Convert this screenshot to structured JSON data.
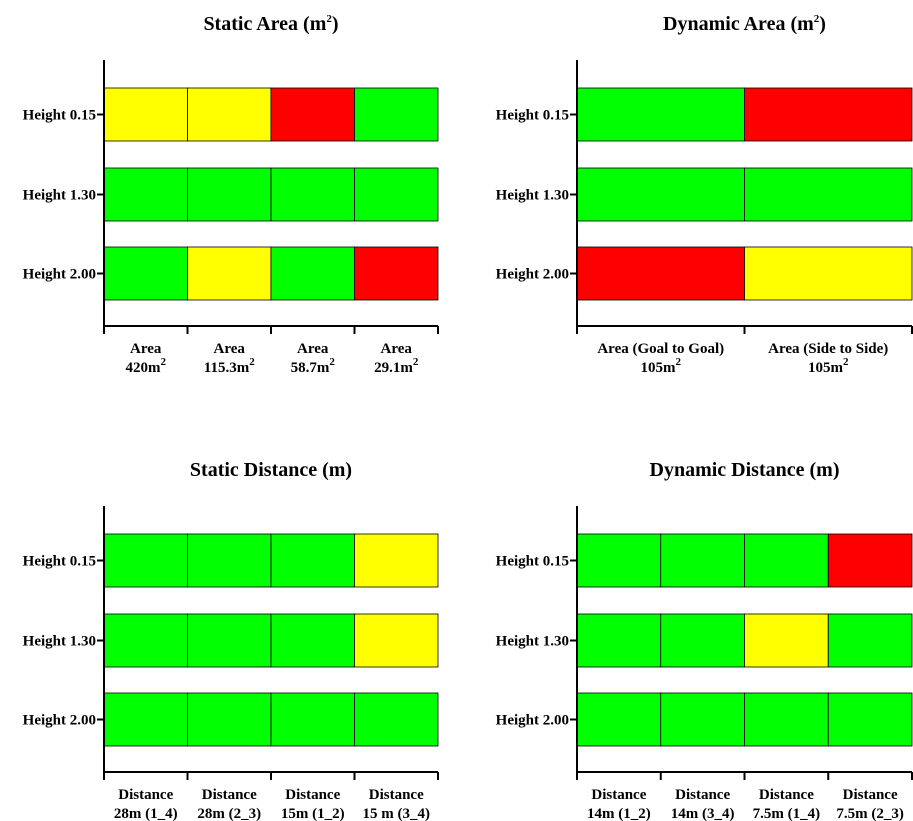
{
  "colors": {
    "green": "#00ff00",
    "yellow": "#ffff00",
    "red": "#ff0000"
  },
  "chart_data": [
    {
      "type": "heatmap",
      "title": "Static Area (m",
      "title_sup": "2",
      "title_end": ")",
      "rows": [
        "Height 0.15",
        "Height 1.30",
        "Height 2.00"
      ],
      "columns": [
        {
          "l1": "Area",
          "l2": "420m",
          "l2_sup": "2"
        },
        {
          "l1": "Area",
          "l2": "115.3m",
          "l2_sup": "2"
        },
        {
          "l1": "Area",
          "l2": "58.7m",
          "l2_sup": "2"
        },
        {
          "l1": "Area",
          "l2": "29.1m",
          "l2_sup": "2"
        }
      ],
      "cells": [
        [
          "yellow",
          "yellow",
          "red",
          "green"
        ],
        [
          "green",
          "green",
          "green",
          "green"
        ],
        [
          "green",
          "yellow",
          "green",
          "red"
        ]
      ]
    },
    {
      "type": "heatmap",
      "title": "Dynamic Area (m",
      "title_sup": "2",
      "title_end": ")",
      "rows": [
        "Height 0.15",
        "Height 1.30",
        "Height 2.00"
      ],
      "columns": [
        {
          "l1": "Area (Goal to Goal)",
          "l2": "105m",
          "l2_sup": "2"
        },
        {
          "l1": "Area (Side to Side)",
          "l2": "105m",
          "l2_sup": "2"
        }
      ],
      "cells": [
        [
          "green",
          "red"
        ],
        [
          "green",
          "green"
        ],
        [
          "red",
          "yellow"
        ]
      ]
    },
    {
      "type": "heatmap",
      "title": "Static Distance (m)",
      "title_sup": "",
      "title_end": "",
      "rows": [
        "Height 0.15",
        "Height 1.30",
        "Height 2.00"
      ],
      "columns": [
        {
          "l1": "Distance",
          "l2": "28m (1_4)",
          "l2_sup": ""
        },
        {
          "l1": "Distance",
          "l2": "28m (2_3)",
          "l2_sup": ""
        },
        {
          "l1": "Distance",
          "l2": "15m (1_2)",
          "l2_sup": ""
        },
        {
          "l1": "Distance",
          "l2": "15 m (3_4)",
          "l2_sup": ""
        }
      ],
      "cells": [
        [
          "green",
          "green",
          "green",
          "yellow"
        ],
        [
          "green",
          "green",
          "green",
          "yellow"
        ],
        [
          "green",
          "green",
          "green",
          "green"
        ]
      ]
    },
    {
      "type": "heatmap",
      "title": "Dynamic Distance (m)",
      "title_sup": "",
      "title_end": "",
      "rows": [
        "Height 0.15",
        "Height 1.30",
        "Height 2.00"
      ],
      "columns": [
        {
          "l1": "Distance",
          "l2": "14m (1_2)",
          "l2_sup": ""
        },
        {
          "l1": "Distance",
          "l2": "14m (3_4)",
          "l2_sup": ""
        },
        {
          "l1": "Distance",
          "l2": "7.5m (1_4)",
          "l2_sup": ""
        },
        {
          "l1": "Distance",
          "l2": "7.5m (2_3)",
          "l2_sup": ""
        }
      ],
      "cells": [
        [
          "green",
          "green",
          "green",
          "red"
        ],
        [
          "green",
          "green",
          "yellow",
          "green"
        ],
        [
          "green",
          "green",
          "green",
          "green"
        ]
      ]
    }
  ]
}
